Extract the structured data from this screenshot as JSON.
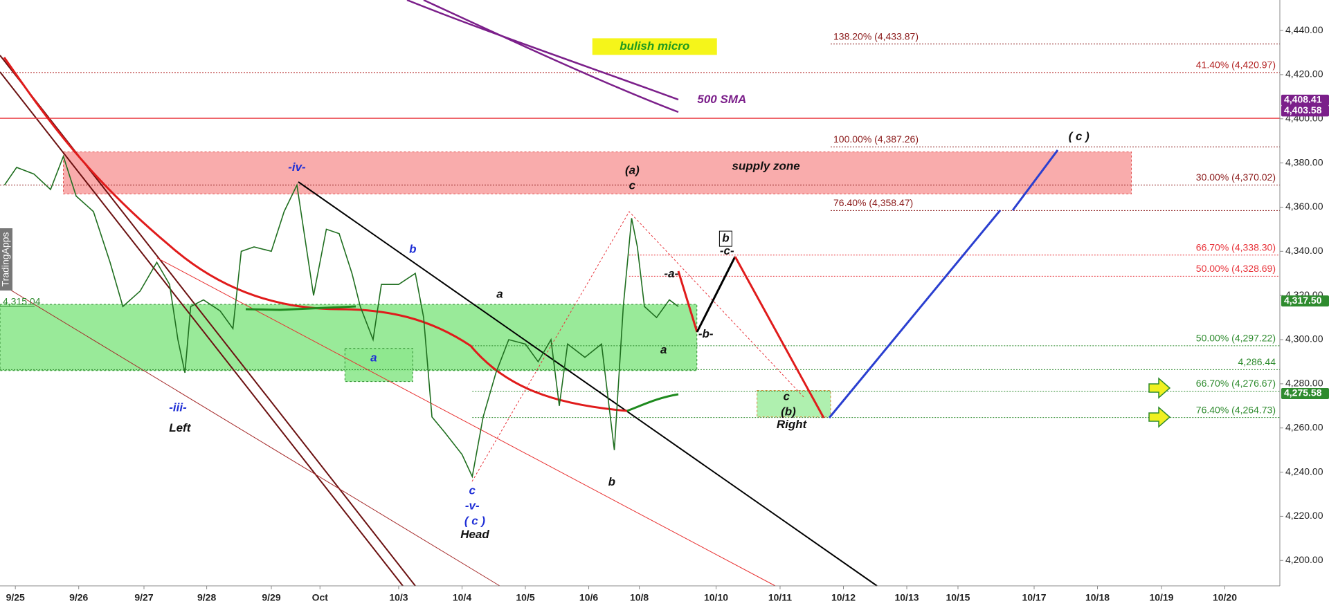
{
  "chart_data": {
    "type": "line",
    "xlim": [
      0,
      20
    ],
    "ylim": [
      4188.5,
      4453.8
    ],
    "xticks": [
      {
        "value": 0.24,
        "label": "9/25"
      },
      {
        "value": 1.23,
        "label": "9/26"
      },
      {
        "value": 2.25,
        "label": "9/27"
      },
      {
        "value": 3.23,
        "label": "9/28"
      },
      {
        "value": 4.24,
        "label": "9/29"
      },
      {
        "value": 5.0,
        "label": "Oct"
      },
      {
        "value": 6.23,
        "label": "10/3"
      },
      {
        "value": 7.22,
        "label": "10/4"
      },
      {
        "value": 8.21,
        "label": "10/5"
      },
      {
        "value": 9.2,
        "label": "10/6"
      },
      {
        "value": 9.99,
        "label": "10/8"
      },
      {
        "value": 11.19,
        "label": "10/10"
      },
      {
        "value": 12.19,
        "label": "10/11"
      },
      {
        "value": 13.18,
        "label": "10/12"
      },
      {
        "value": 14.17,
        "label": "10/13"
      },
      {
        "value": 14.97,
        "label": "10/15"
      },
      {
        "value": 16.16,
        "label": "10/17"
      },
      {
        "value": 17.15,
        "label": "10/18"
      },
      {
        "value": 18.15,
        "label": "10/19"
      },
      {
        "value": 19.14,
        "label": "10/20"
      }
    ],
    "yticks": [
      {
        "value": 4200,
        "label": "4,200.00"
      },
      {
        "value": 4220,
        "label": "4,220.00"
      },
      {
        "value": 4240,
        "label": "4,240.00"
      },
      {
        "value": 4260,
        "label": "4,260.00"
      },
      {
        "value": 4280,
        "label": "4,280.00"
      },
      {
        "value": 4300,
        "label": "4,300.00"
      },
      {
        "value": 4320,
        "label": "4,320.00"
      },
      {
        "value": 4340,
        "label": "4,340.00"
      },
      {
        "value": 4360,
        "label": "4,360.00"
      },
      {
        "value": 4380,
        "label": "4,380.00"
      },
      {
        "value": 4400,
        "label": "4,400.00"
      },
      {
        "value": 4420,
        "label": "4,420.00"
      },
      {
        "value": 4440,
        "label": "4,440.00"
      }
    ],
    "series": [
      {
        "color": "#1f6e1f",
        "x": [
          0.07,
          0.26,
          0.53,
          0.79,
          0.99,
          1.19,
          1.46,
          1.72,
          1.92,
          2.19,
          2.45,
          2.65,
          2.78,
          2.89,
          2.98,
          3.18,
          3.44,
          3.64,
          3.77,
          3.97,
          4.24,
          4.44,
          4.64,
          4.77,
          4.9,
          5.1,
          5.3,
          5.5,
          5.63,
          5.83,
          5.96,
          6.23,
          6.49,
          6.62,
          6.75,
          6.95,
          7.22,
          7.38,
          7.55,
          7.75,
          7.95,
          8.21,
          8.41,
          8.61,
          8.74,
          8.87,
          9.14,
          9.4,
          9.6,
          9.74,
          9.87,
          9.96,
          10.07,
          10.26,
          10.46,
          10.6
        ],
        "values": [
          4370,
          4378,
          4375,
          4368,
          4383,
          4365,
          4358,
          4335,
          4315,
          4322,
          4335,
          4325,
          4300,
          4285,
          4315,
          4318,
          4313,
          4305,
          4340,
          4342,
          4340,
          4358,
          4370,
          4345,
          4320,
          4350,
          4348,
          4330,
          4315,
          4300,
          4325,
          4325,
          4330,
          4310,
          4265,
          4258,
          4248,
          4238,
          4265,
          4285,
          4300,
          4298,
          4290,
          4300,
          4270,
          4298,
          4292,
          4298,
          4250,
          4315,
          4355,
          4342,
          4315,
          4310,
          4318,
          4315
        ]
      }
    ],
    "levels": [
      {
        "value": 4433.87,
        "label": "138.20% (4,433.87)",
        "color": "#8b1a1a",
        "from": 12.98,
        "label_side": "left"
      },
      {
        "value": 4420.97,
        "label": "41.40% (4,420.97)",
        "color": "#b22222",
        "from": 0,
        "label_side": "right"
      },
      {
        "value": 4387.26,
        "label": "100.00% (4,387.26)",
        "color": "#8b1a1a",
        "from": 12.98,
        "label_side": "left"
      },
      {
        "value": 4370.02,
        "label": "30.00% (4,370.02)",
        "color": "#8b1a1a",
        "from": 0,
        "label_side": "right"
      },
      {
        "value": 4358.47,
        "label": "76.40% (4,358.47)",
        "color": "#8b1a1a",
        "from": 12.98,
        "label_side": "left"
      },
      {
        "value": 4338.3,
        "label": "66.70% (4,338.30)",
        "color": "#e8333a",
        "from": 9.83,
        "label_side": "right"
      },
      {
        "value": 4328.69,
        "label": "50.00% (4,328.69)",
        "color": "#e8333a",
        "from": 9.83,
        "label_side": "right"
      },
      {
        "value": 4297.22,
        "label": "50.00% (4,297.22)",
        "color": "#2e8b2e",
        "from": 7.38,
        "label_side": "right"
      },
      {
        "value": 4286.44,
        "label": "4,286.44",
        "color": "#2e8b2e",
        "from": 0,
        "label_side": "right"
      },
      {
        "value": 4276.67,
        "label": "66.70% (4,276.67)",
        "color": "#2e8b2e",
        "from": 7.38,
        "label_side": "right"
      },
      {
        "value": 4264.73,
        "label": "76.40% (4,264.73)",
        "color": "#2e8b2e",
        "from": 7.38,
        "label_side": "right"
      }
    ],
    "price_tags": [
      {
        "value": 4408.41,
        "label": "4,408.41",
        "color": "#7b1f8a"
      },
      {
        "value": 4403.58,
        "label": "4,403.58",
        "color": "#7b1f8a"
      },
      {
        "value": 4317.5,
        "label": "4,317.50",
        "color": "#2e8b2e"
      },
      {
        "value": 4275.58,
        "label": "4,275.58",
        "color": "#2e8b2e"
      }
    ],
    "left_tag": {
      "value": 4315.04,
      "label": "4,315.04"
    },
    "zones": [
      {
        "y": [
          4366,
          4385
        ],
        "x": [
          0.99,
          17.68
        ],
        "color": "#f8a3a3",
        "border": "#e05050"
      },
      {
        "y": [
          4286,
          4316
        ],
        "x": [
          0,
          10.89
        ],
        "color": "#8ee88e",
        "border": "#2e8b2e"
      },
      {
        "y": [
          4281,
          4296
        ],
        "x": [
          5.39,
          6.45
        ],
        "color": "#8ee88e",
        "border": "#2e8b2e"
      },
      {
        "y": [
          4265,
          4277
        ],
        "x": [
          11.83,
          12.98
        ],
        "color": "#a6eea6",
        "border": "#d08a3a"
      }
    ],
    "annotations": [
      {
        "text": "-iv-",
        "x": 4.64,
        "y": 4377.9,
        "color": "#1f2fd6"
      },
      {
        "text": "-iii-",
        "x": 2.78,
        "y": 4269.0,
        "color": "#1f2fd6"
      },
      {
        "text": "Left",
        "x": 2.81,
        "y": 4259.8,
        "color": "#111111"
      },
      {
        "text": "c",
        "x": 7.38,
        "y": 4231.4,
        "color": "#1f2fd6"
      },
      {
        "text": "-v-",
        "x": 7.38,
        "y": 4224.5,
        "color": "#1f2fd6"
      },
      {
        "text": "( c )",
        "x": 7.42,
        "y": 4217.6,
        "color": "#1f2fd6"
      },
      {
        "text": "Head",
        "x": 7.42,
        "y": 4211.5,
        "color": "#111111"
      },
      {
        "text": "a",
        "x": 5.84,
        "y": 4291.6,
        "color": "#1f2fd6"
      },
      {
        "text": "b",
        "x": 6.45,
        "y": 4340.7,
        "color": "#1f2fd6"
      },
      {
        "text": "a",
        "x": 7.81,
        "y": 4320.4,
        "color": "#111111"
      },
      {
        "text": "(a)",
        "x": 9.88,
        "y": 4376.4,
        "color": "#111111"
      },
      {
        "text": "c",
        "x": 9.88,
        "y": 4369.5,
        "color": "#111111"
      },
      {
        "text": "b",
        "x": 9.56,
        "y": 4235.3,
        "color": "#111111"
      },
      {
        "text": "b",
        "x": 11.34,
        "y": 4345.7,
        "color": "#111111",
        "boxed": true
      },
      {
        "text": "-c-",
        "x": 11.36,
        "y": 4339.9,
        "color": "#111111"
      },
      {
        "text": "-a-",
        "x": 10.49,
        "y": 4329.6,
        "color": "#111111"
      },
      {
        "text": "-b-",
        "x": 11.03,
        "y": 4302.4,
        "color": "#111111"
      },
      {
        "text": "a",
        "x": 10.37,
        "y": 4295.1,
        "color": "#111111"
      },
      {
        "text": "c",
        "x": 12.29,
        "y": 4274.0,
        "color": "#111111"
      },
      {
        "text": "(b)",
        "x": 12.32,
        "y": 4267.1,
        "color": "#111111"
      },
      {
        "text": "Right",
        "x": 12.37,
        "y": 4261.3,
        "color": "#111111"
      },
      {
        "text": "( c )",
        "x": 16.86,
        "y": 4391.7,
        "color": "#111111"
      },
      {
        "text": "supply zone",
        "x": 11.97,
        "y": 4378.3,
        "color": "#111111"
      },
      {
        "text": "bulish micro",
        "x": 10.23,
        "y": 4432.7,
        "color": "#1f9a1f",
        "bg": "#f5f51a"
      },
      {
        "text": "500 SMA",
        "x": 11.28,
        "y": 4408.6,
        "color": "#7b1f8a"
      }
    ],
    "watermark": "TradingApps"
  }
}
